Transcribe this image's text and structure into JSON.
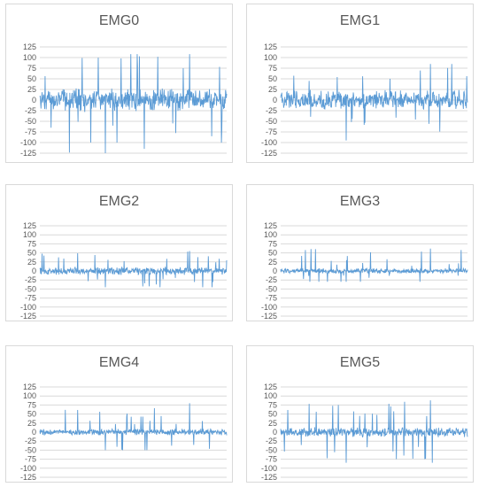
{
  "chart_data": [
    {
      "type": "line",
      "title": "EMG0",
      "ylim": [
        -125,
        125
      ],
      "yticks": [
        125,
        100,
        75,
        50,
        25,
        0,
        -25,
        -50,
        -75,
        -100,
        -125
      ],
      "grid": true,
      "series_color": "#5b9bd5",
      "series": [
        {
          "typical_amplitude": 30,
          "peak_max": 108,
          "peak_min": -125,
          "samples": 500
        }
      ]
    },
    {
      "type": "line",
      "title": "EMG1",
      "ylim": [
        -125,
        125
      ],
      "yticks": [
        125,
        100,
        75,
        50,
        25,
        0,
        -25,
        -50,
        -75,
        -100,
        -125
      ],
      "grid": true,
      "series_color": "#5b9bd5",
      "series": [
        {
          "typical_amplitude": 25,
          "peak_max": 85,
          "peak_min": -95,
          "samples": 500
        }
      ]
    },
    {
      "type": "line",
      "title": "EMG2",
      "ylim": [
        -125,
        125
      ],
      "yticks": [
        125,
        100,
        75,
        50,
        25,
        0,
        -25,
        -50,
        -75,
        -100,
        -125
      ],
      "grid": true,
      "series_color": "#5b9bd5",
      "series": [
        {
          "typical_amplitude": 12,
          "peak_max": 55,
          "peak_min": -45,
          "samples": 500
        }
      ]
    },
    {
      "type": "line",
      "title": "EMG3",
      "ylim": [
        -125,
        125
      ],
      "yticks": [
        125,
        100,
        75,
        50,
        25,
        0,
        -25,
        -50,
        -75,
        -100,
        -125
      ],
      "grid": true,
      "series_color": "#5b9bd5",
      "series": [
        {
          "typical_amplitude": 8,
          "peak_max": 62,
          "peak_min": -30,
          "samples": 500
        }
      ]
    },
    {
      "type": "line",
      "title": "EMG4",
      "ylim": [
        -125,
        125
      ],
      "yticks": [
        125,
        100,
        75,
        50,
        25,
        0,
        -25,
        -50,
        -75,
        -100,
        -125
      ],
      "grid": true,
      "series_color": "#5b9bd5",
      "series": [
        {
          "typical_amplitude": 10,
          "peak_max": 80,
          "peak_min": -50,
          "samples": 500
        }
      ]
    },
    {
      "type": "line",
      "title": "EMG5",
      "ylim": [
        -125,
        125
      ],
      "yticks": [
        125,
        100,
        75,
        50,
        25,
        0,
        -25,
        -50,
        -75,
        -100,
        -125
      ],
      "grid": true,
      "series_color": "#5b9bd5",
      "series": [
        {
          "typical_amplitude": 15,
          "peak_max": 88,
          "peak_min": -85,
          "samples": 500
        }
      ]
    }
  ]
}
